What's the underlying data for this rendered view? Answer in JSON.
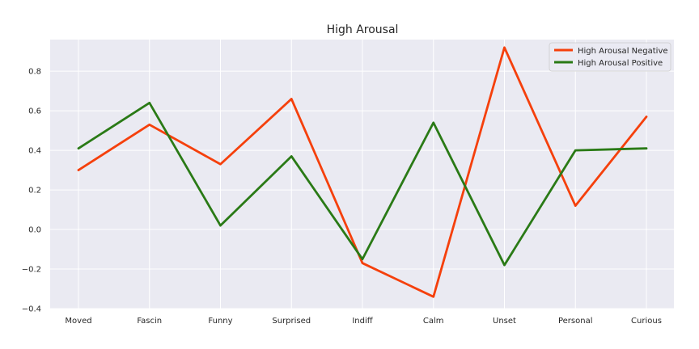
{
  "chart_data": {
    "type": "line",
    "title": "High Arousal",
    "xlabel": "",
    "ylabel": "",
    "categories": [
      "Moved",
      "Fascin",
      "Funny",
      "Surprised",
      "Indiff",
      "Calm",
      "Unset",
      "Personal",
      "Curious"
    ],
    "ylim": [
      -0.4,
      0.96
    ],
    "yticks": [
      -0.4,
      -0.2,
      0.0,
      0.2,
      0.4,
      0.6,
      0.8
    ],
    "ytick_labels": [
      "−0.4",
      "−0.2",
      "0.0",
      "0.2",
      "0.4",
      "0.6",
      "0.8"
    ],
    "grid": true,
    "legend_position": "top-right",
    "series": [
      {
        "name": "High Arousal Negative",
        "color": "#f5400c",
        "values": [
          0.3,
          0.53,
          0.33,
          0.66,
          -0.17,
          -0.34,
          0.92,
          0.12,
          0.57
        ]
      },
      {
        "name": "High Arousal Positive",
        "color": "#2a7a16",
        "values": [
          0.41,
          0.64,
          0.02,
          0.37,
          -0.15,
          0.54,
          -0.18,
          0.4,
          0.41
        ]
      }
    ]
  }
}
